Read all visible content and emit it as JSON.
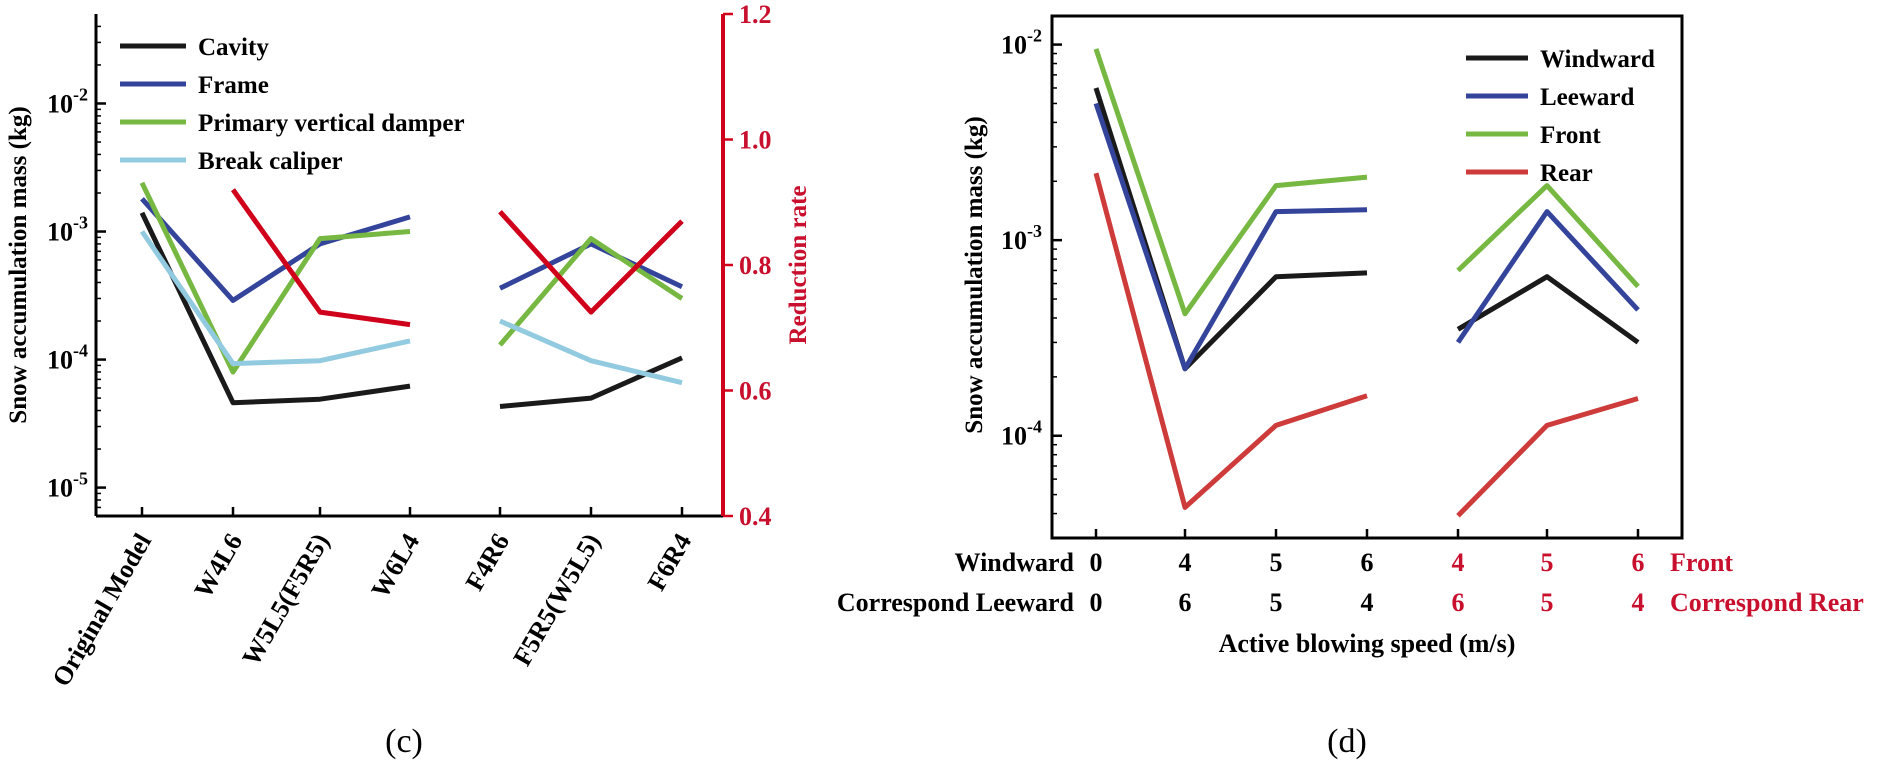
{
  "chart_data": [
    {
      "type": "line",
      "panel_label": "(c)",
      "categories": [
        "Original Model",
        "W4L6",
        "W5L5(F5R5)",
        "W6L4",
        "F4R6",
        "F5R5(W5L5)",
        "F6R4"
      ],
      "ylabel": "Snow accumulation mass (kg)",
      "y2label": "Reduction rate",
      "yscale": "log",
      "ylim": [
        6e-06,
        0.05
      ],
      "y_ticks": [
        {
          "value": 1e-05,
          "base": "10",
          "exp": "-5"
        },
        {
          "value": 0.0001,
          "base": "10",
          "exp": "-4"
        },
        {
          "value": 0.001,
          "base": "10",
          "exp": "-3"
        },
        {
          "value": 0.01,
          "base": "10",
          "exp": "-2"
        }
      ],
      "y2lim": [
        0.4,
        1.2
      ],
      "y2_ticks": [
        "0.4",
        "0.6",
        "0.8",
        "1.0",
        "1.2"
      ],
      "series": [
        {
          "name": "Cavity",
          "color": "#1a1a1a",
          "groups": [
            [
              0.0014,
              4.6e-05,
              4.9e-05,
              6.2e-05
            ],
            [
              4.3e-05,
              5e-05,
              0.000103
            ]
          ]
        },
        {
          "name": "Frame",
          "color": "#34449b",
          "groups": [
            [
              0.0018,
              0.00029,
              0.0008,
              0.0013
            ],
            [
              0.00036,
              0.0008,
              0.00037
            ]
          ]
        },
        {
          "name": "Primary vertical damper",
          "color": "#77b843",
          "groups": [
            [
              0.0024,
              8e-05,
              0.00088,
              0.001
            ],
            [
              0.00013,
              0.00088,
              0.0003
            ]
          ]
        },
        {
          "name": "Break caliper",
          "color": "#92cbe0",
          "groups": [
            [
              0.001,
              9.3e-05,
              9.8e-05,
              0.00014
            ],
            [
              0.0002,
              9.8e-05,
              6.6e-05
            ]
          ]
        }
      ],
      "reduction_rate": {
        "color": "#d0021b",
        "groups": [
          [
            null,
            0.92,
            0.725,
            0.705
          ],
          [
            0.885,
            0.725,
            0.87
          ]
        ]
      }
    },
    {
      "type": "line",
      "panel_label": "(d)",
      "xlabel": "Active blowing speed (m/s)",
      "ylabel": "Snow accumulation mass (kg)",
      "yscale": "log",
      "ylim": [
        3e-05,
        0.014
      ],
      "y_ticks": [
        {
          "value": 0.0001,
          "base": "10",
          "exp": "-4"
        },
        {
          "value": 0.001,
          "base": "10",
          "exp": "-3"
        },
        {
          "value": 0.01,
          "base": "10",
          "exp": "-2"
        }
      ],
      "x_rows": [
        {
          "label": "Windward",
          "values": [
            "0",
            "4",
            "5",
            "6"
          ],
          "red_values": [
            "4",
            "5",
            "6"
          ],
          "red_label": "Front"
        },
        {
          "label": "Correspond  Leeward",
          "values": [
            "0",
            "6",
            "5",
            "4"
          ],
          "red_values": [
            "6",
            "5",
            "4"
          ],
          "red_label": "Correspond  Rear"
        }
      ],
      "series": [
        {
          "name": "Windward",
          "color": "#1a1a1a",
          "groups": [
            [
              0.006,
              0.00022,
              0.00065,
              0.00068
            ],
            [
              0.00035,
              0.00065,
              0.0003
            ]
          ]
        },
        {
          "name": "Leeward",
          "color": "#34449b",
          "groups": [
            [
              0.005,
              0.00022,
              0.0014,
              0.00143
            ],
            [
              0.0003,
              0.0014,
              0.00044
            ]
          ]
        },
        {
          "name": "Front",
          "color": "#77b843",
          "groups": [
            [
              0.0095,
              0.00042,
              0.0019,
              0.0021
            ],
            [
              0.0007,
              0.0019,
              0.00058
            ]
          ]
        },
        {
          "name": "Rear",
          "color": "#cd3b3b",
          "groups": [
            [
              0.0022,
              4.3e-05,
              0.000113,
              0.00016
            ],
            [
              3.9e-05,
              0.000113,
              0.000155
            ]
          ]
        }
      ]
    }
  ]
}
